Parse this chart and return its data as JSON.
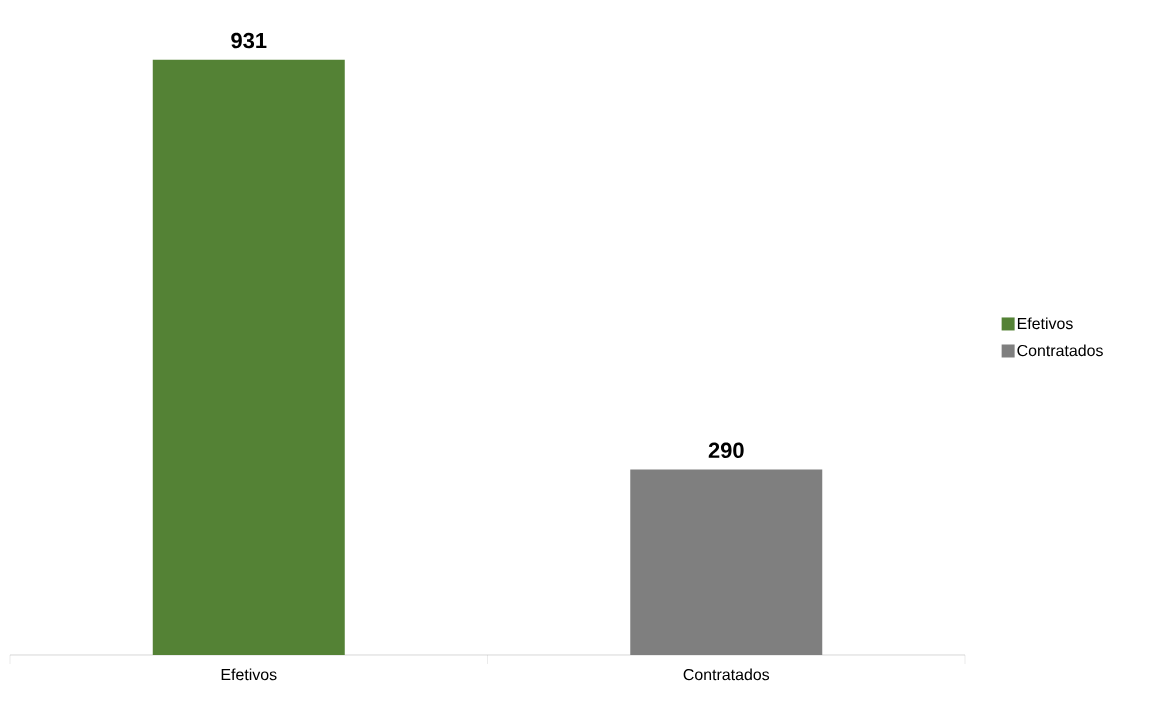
{
  "chart_data": {
    "type": "bar",
    "categories": [
      "Efetivos",
      "Contratados"
    ],
    "series": [
      {
        "name": "Efetivos",
        "color": "#548235",
        "values": [
          931,
          null
        ]
      },
      {
        "name": "Contratados",
        "color": "#7f7f7f",
        "values": [
          null,
          290
        ]
      }
    ],
    "data_labels": true,
    "legend": "right"
  }
}
